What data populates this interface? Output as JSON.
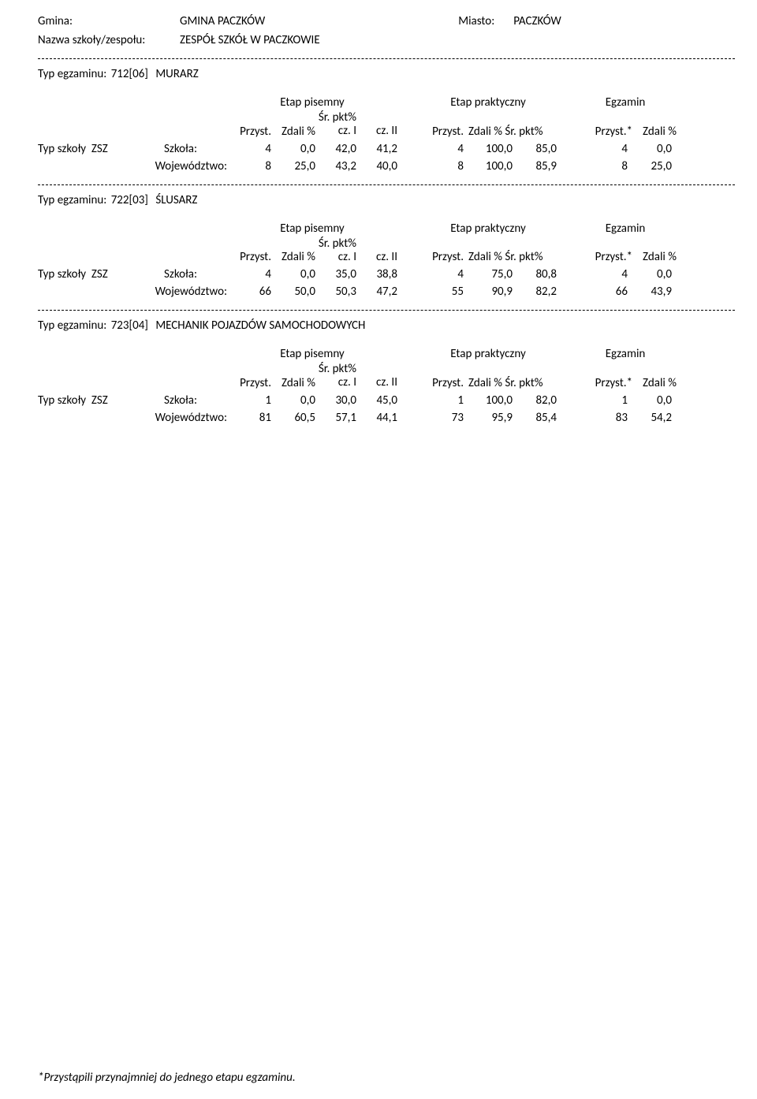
{
  "header": {
    "gmina_label": "Gmina:",
    "gmina_value": "GMINA PACZKÓW",
    "miasto_label": "Miasto:",
    "miasto_value": "PACZKÓW",
    "school_label": "Nazwa szkoły/zespołu:",
    "school_value": "ZESPÓŁ SZKÓŁ W PACZKOWIE"
  },
  "column_headers": {
    "group_pisemny": "Etap pisemny",
    "group_praktyczny": "Etap praktyczny",
    "group_egzamin": "Egzamin",
    "przyst": "Przyst.",
    "zdali_pct": "Zdali %",
    "sr_pkt": "Śr. pkt%",
    "cz1": "cz. I",
    "cz2": "cz. II",
    "zdali_sr_pkt": "Zdali % Śr. pkt%",
    "przyst_star": "Przyst.*",
    "zdali_pct2": "Zdali %"
  },
  "row_labels": {
    "typ_szkoly": "Typ szkoły",
    "zsz": "ZSZ",
    "szkola": "Szkoła:",
    "wojewodztwo": "Województwo:"
  },
  "exams": [
    {
      "prefix": "Typ egzaminu:",
      "code": "712[06]",
      "name": "MURARZ",
      "rows": [
        {
          "src": "szkola",
          "p1": "4",
          "z1": "0,0",
          "k1a": "42,0",
          "k1b": "41,2",
          "p2": "4",
          "z2": "100,0",
          "k2": "85,0",
          "p3": "4",
          "z3": "0,0"
        },
        {
          "src": "wojewodztwo",
          "p1": "8",
          "z1": "25,0",
          "k1a": "43,2",
          "k1b": "40,0",
          "p2": "8",
          "z2": "100,0",
          "k2": "85,9",
          "p3": "8",
          "z3": "25,0"
        }
      ]
    },
    {
      "prefix": "Typ egzaminu:",
      "code": "722[03]",
      "name": "ŚLUSARZ",
      "rows": [
        {
          "src": "szkola",
          "p1": "4",
          "z1": "0,0",
          "k1a": "35,0",
          "k1b": "38,8",
          "p2": "4",
          "z2": "75,0",
          "k2": "80,8",
          "p3": "4",
          "z3": "0,0"
        },
        {
          "src": "wojewodztwo",
          "p1": "66",
          "z1": "50,0",
          "k1a": "50,3",
          "k1b": "47,2",
          "p2": "55",
          "z2": "90,9",
          "k2": "82,2",
          "p3": "66",
          "z3": "43,9"
        }
      ]
    },
    {
      "prefix": "Typ egzaminu:",
      "code": "723[04]",
      "name": "MECHANIK POJAZDÓW SAMOCHODOWYCH",
      "rows": [
        {
          "src": "szkola",
          "p1": "1",
          "z1": "0,0",
          "k1a": "30,0",
          "k1b": "45,0",
          "p2": "1",
          "z2": "100,0",
          "k2": "82,0",
          "p3": "1",
          "z3": "0,0"
        },
        {
          "src": "wojewodztwo",
          "p1": "81",
          "z1": "60,5",
          "k1a": "57,1",
          "k1b": "44,1",
          "p2": "73",
          "z2": "95,9",
          "k2": "85,4",
          "p3": "83",
          "z3": "54,2"
        }
      ]
    }
  ],
  "footer": "*Przystąpili przynajmniej do jednego etapu egzaminu."
}
